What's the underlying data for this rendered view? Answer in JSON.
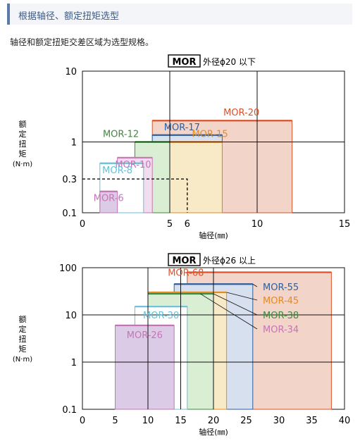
{
  "header": {
    "title": "根据轴径、额定扭矩选型"
  },
  "intro": "轴径和额定扭矩交差区域为选型规格。",
  "chart_data": [
    {
      "type": "area",
      "title_box": "MOR",
      "title_rest": "外径ϕ20 以下",
      "xlabel": "轴径(㎜)",
      "ylabel": [
        "额",
        "定",
        "扭",
        "矩",
        "(N·m)"
      ],
      "x_ticks": [
        0,
        5,
        6,
        10,
        15
      ],
      "y_ticks": [
        {
          "value": 0.1,
          "label": "0.1"
        },
        {
          "value": 0.3,
          "label": "0.3"
        },
        {
          "value": 1,
          "label": "1"
        },
        {
          "value": 10,
          "label": "10"
        }
      ],
      "x_range": [
        0,
        15
      ],
      "y_range": [
        0.1,
        10
      ],
      "y_scale": "log",
      "grid_x": [
        5,
        10
      ],
      "grid_y": [
        1
      ],
      "example_guide": {
        "x": 6,
        "y": 0.3
      },
      "series": [
        {
          "name": "MOR-20",
          "x": [
            4,
            12
          ],
          "torque": 2,
          "color": "#d9532c",
          "fill": "#f2d4c8",
          "label_x": 9.1,
          "label_y_offset": -7
        },
        {
          "name": "MOR-17",
          "x": [
            4,
            8
          ],
          "torque": 1.25,
          "color": "#2e5e9c",
          "fill": "#d7e0ee",
          "label_x": 5.7,
          "label_y_offset": -7
        },
        {
          "name": "MOR-15",
          "x": [
            5,
            8
          ],
          "torque": 1,
          "color": "#e58a25",
          "fill": "#f8e9c7",
          "label_x": 7.3,
          "label_y_offset": -7
        },
        {
          "name": "MOR-12",
          "x": [
            3,
            5
          ],
          "torque": 1,
          "color": "#3e8a3e",
          "fill": "#d9eed3",
          "label_x": 2.2,
          "label_y_offset": -7
        },
        {
          "name": "MOR-10",
          "x": [
            2,
            4
          ],
          "torque": 0.6,
          "color": "#c575b5",
          "fill": "#f2dcee",
          "label_x": 2.9,
          "label_y_offset": 14
        },
        {
          "name": "MOR-8",
          "x": [
            1,
            3.5
          ],
          "torque": 0.5,
          "color": "#66c0d8",
          "fill": "#ffffff",
          "label_x": 2,
          "label_y_offset": 14
        },
        {
          "name": "MOR-6",
          "x": [
            1,
            2
          ],
          "torque": 0.2,
          "color": "#c575b5",
          "fill": "#dccbe6",
          "label_x": 1.5,
          "label_y_offset": 14
        }
      ]
    },
    {
      "type": "area",
      "title_box": "MOR",
      "title_rest": "外径ϕ26 以上",
      "xlabel": "轴径(㎜)",
      "ylabel": [
        "额",
        "定",
        "扭",
        "矩",
        "(N·m)"
      ],
      "x_ticks": [
        0,
        5,
        10,
        15,
        20,
        25,
        30,
        35,
        40
      ],
      "y_ticks": [
        {
          "value": 0.1,
          "label": "0.1"
        },
        {
          "value": 1,
          "label": "1"
        },
        {
          "value": 10,
          "label": "10"
        },
        {
          "value": 100,
          "label": "100"
        }
      ],
      "x_range": [
        0,
        40
      ],
      "y_range": [
        0.1,
        100
      ],
      "y_scale": "log",
      "grid_x": [
        10,
        15,
        20
      ],
      "grid_y": [
        1,
        10
      ],
      "series": [
        {
          "name": "MOR-68",
          "x": [
            16,
            38
          ],
          "torque": 80,
          "color": "#d9532c",
          "fill": "#f2d4c8"
        },
        {
          "name": "MOR-55",
          "x": [
            14,
            26
          ],
          "torque": 45,
          "color": "#2e5e9c",
          "fill": "#d7e0ee"
        },
        {
          "name": "MOR-45",
          "x": [
            10,
            22
          ],
          "torque": 30,
          "color": "#e58a25",
          "fill": "#f8e9c7"
        },
        {
          "name": "MOR-38",
          "x": [
            10,
            20
          ],
          "torque": 28,
          "color": "#3e8a3e",
          "fill": "#d9eed3"
        },
        {
          "name": "MOR-30",
          "x": [
            8,
            16
          ],
          "torque": 15,
          "color": "#66c0d8",
          "fill": "#ffffff"
        },
        {
          "name": "MOR-26",
          "x": [
            5,
            14
          ],
          "torque": 6,
          "color": "#c575b5",
          "fill": "#dccbe6"
        }
      ]
    }
  ]
}
